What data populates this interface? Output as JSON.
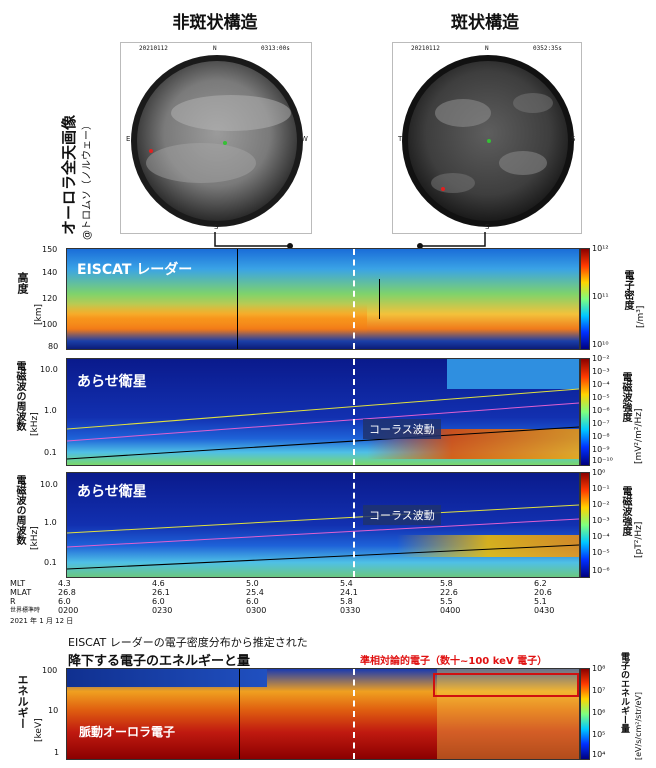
{
  "sky": {
    "left_title": "非斑状構造",
    "right_title": "斑状構造",
    "side_label": "オーロラ全天画像",
    "side_sub": "@トロムソ（ノルウェー）",
    "left_meta": {
      "date": "20210112",
      "dir_top": "N",
      "time": "0313:00s",
      "dir_left": "E",
      "dir_right": "W",
      "dir_bottom": "S"
    },
    "right_meta": {
      "date": "20210112",
      "dir_top": "N",
      "time": "0352:35s",
      "dir_left": "T",
      "dir_right": "S",
      "dir_bottom": "S"
    }
  },
  "panels": {
    "eiscat": {
      "label": "EISCAT レーダー",
      "ylabel": "高度",
      "yunit": "[km]",
      "yticks": [
        "150",
        "140",
        "120",
        "100",
        "80"
      ],
      "cbar_label": "電子密度",
      "cbar_unit": "[/m³]",
      "cbar_ticks": [
        "10¹²",
        "10¹¹",
        "10¹⁰"
      ]
    },
    "arase1": {
      "label": "あらせ衛星",
      "ylabel": "電磁波の周波数",
      "yunit": "[kHz]",
      "yticks": [
        "10.0",
        "1.0",
        "0.1"
      ],
      "wave": "コーラス波動",
      "cbar_label": "電磁波強度",
      "cbar_unit": "[mV²/m²/Hz]",
      "cbar_ticks": [
        "10⁻²",
        "10⁻³",
        "10⁻⁴",
        "10⁻⁵",
        "10⁻⁶",
        "10⁻⁷",
        "10⁻⁸",
        "10⁻⁹",
        "10⁻¹⁰"
      ]
    },
    "arase2": {
      "label": "あらせ衛星",
      "ylabel": "電磁波の周波数",
      "yunit": "[kHz]",
      "yticks": [
        "10.0",
        "1.0",
        "0.1"
      ],
      "wave": "コーラス波動",
      "cbar_label": "電磁波強度",
      "cbar_unit": "[pT²/Hz]",
      "cbar_ticks": [
        "10⁰",
        "10⁻¹",
        "10⁻²",
        "10⁻³",
        "10⁻⁴",
        "10⁻⁵",
        "10⁻⁶"
      ]
    },
    "energy": {
      "caption1": "EISCAT レーダーの電子密度分布から推定された",
      "caption2": "降下する電子のエネルギーと量",
      "red_note": "準相対論的電子（数十~100 keV 電子）",
      "inner_label": "脈動オーロラ電子",
      "ylabel": "エネルギー",
      "yunit": "[keV]",
      "yticks": [
        "100",
        "10",
        "1"
      ],
      "cbar_label": "電子のエネルギー量",
      "cbar_unit": "[eV/s/cm²/str/eV]",
      "cbar_ticks": [
        "10⁸",
        "10⁷",
        "10⁶",
        "10⁵",
        "10⁴"
      ]
    }
  },
  "time_axis": {
    "row_labels": [
      "MLT",
      "MLAT",
      "R",
      "世界標準時"
    ],
    "date": "2021 年 1 月 12 日",
    "columns": [
      {
        "mlt": "4.3",
        "mlat": "26.8",
        "r": "6.0",
        "ut": "0200"
      },
      {
        "mlt": "4.6",
        "mlat": "26.1",
        "r": "6.0",
        "ut": "0230"
      },
      {
        "mlt": "5.0",
        "mlat": "25.4",
        "r": "6.0",
        "ut": "0300"
      },
      {
        "mlt": "5.4",
        "mlat": "24.1",
        "r": "5.8",
        "ut": "0330"
      },
      {
        "mlt": "5.8",
        "mlat": "22.6",
        "r": "5.5",
        "ut": "0400"
      },
      {
        "mlt": "6.2",
        "mlat": "20.6",
        "r": "5.1",
        "ut": "0430"
      }
    ]
  },
  "chart_data": {
    "type": "heatmap",
    "x": [
      "0200",
      "0230",
      "0300",
      "0330",
      "0400",
      "0430"
    ],
    "xlabel": "世界標準時",
    "panels": [
      {
        "name": "EISCAT レーダー",
        "ylabel": "高度 [km]",
        "ylim": [
          80,
          150
        ],
        "colorbar": "電子密度 [/m³]",
        "clim": [
          "10¹⁰",
          "10¹²"
        ]
      },
      {
        "name": "あらせ衛星",
        "ylabel": "電磁波の周波数 [kHz]",
        "ylim": [
          0.1,
          10.0
        ],
        "colorbar": "電磁波強度 [mV²/m²/Hz]",
        "clim": [
          "10⁻¹⁰",
          "10⁻²"
        ]
      },
      {
        "name": "あらせ衛星",
        "ylabel": "電磁波の周波数 [kHz]",
        "ylim": [
          0.1,
          10.0
        ],
        "colorbar": "電磁波強度 [pT²/Hz]",
        "clim": [
          "10⁻⁶",
          "10⁰"
        ]
      },
      {
        "name": "",
        "ylabel": "エネルギー [keV]",
        "ylim": [
          1,
          100
        ],
        "colorbar": "電子のエネルギー量 [eV/s/cm²/str/eV]",
        "clim": [
          "10⁴",
          "10⁸"
        ]
      }
    ],
    "marker_time": "0330"
  }
}
